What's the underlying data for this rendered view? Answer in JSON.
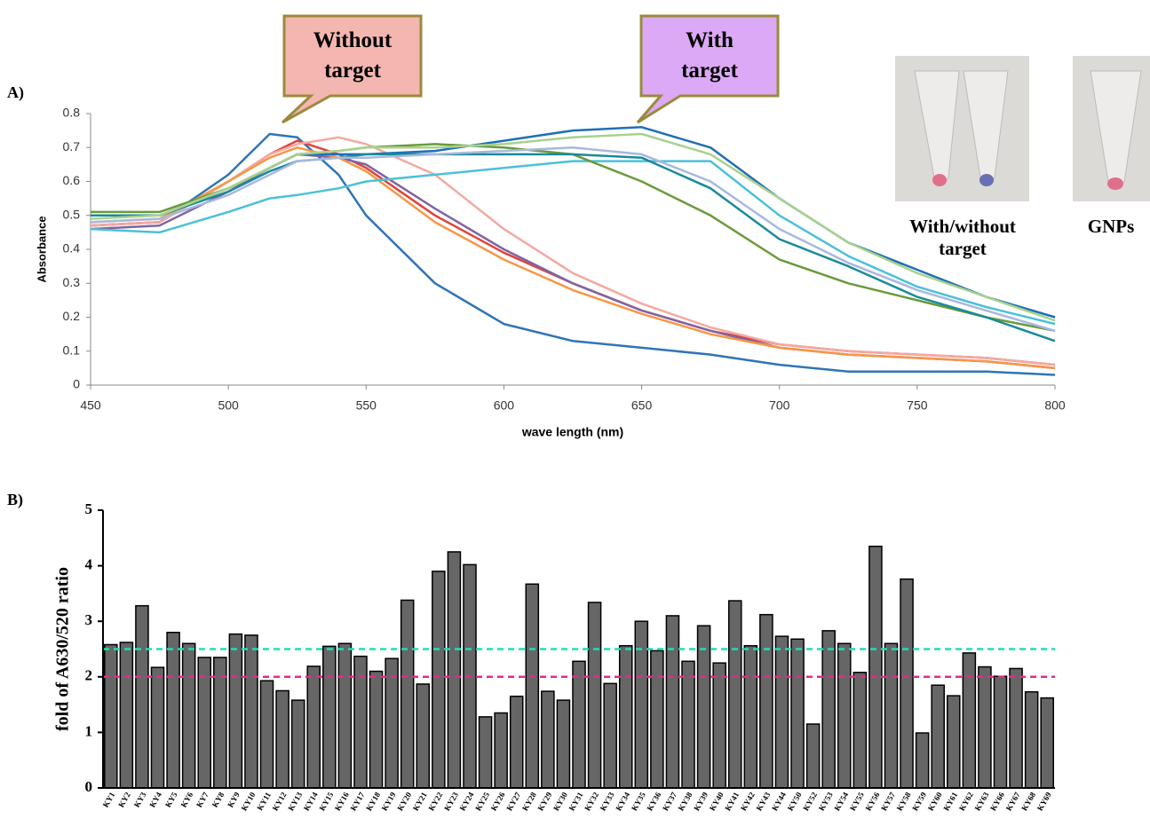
{
  "chart_data": [
    {
      "type": "line",
      "panel_label": "A)",
      "x_label": "wave length (nm)",
      "y_label": "Absorbance",
      "annotations": [
        "Without target",
        "With target"
      ],
      "image_captions": [
        "With/without target",
        "GNPs"
      ],
      "x": [
        450,
        475,
        500,
        515,
        525,
        540,
        550,
        575,
        600,
        625,
        650,
        675,
        700,
        725,
        750,
        775,
        800
      ],
      "xlim": [
        450,
        800
      ],
      "xticks": [
        450,
        500,
        550,
        600,
        650,
        700,
        750,
        800
      ],
      "ylim": [
        0,
        0.8
      ],
      "yticks": [
        0,
        0.1,
        0.2,
        0.3,
        0.4,
        0.5,
        0.6,
        0.7,
        0.8
      ],
      "series": [
        {
          "color": "#2e75b6",
          "values": [
            0.47,
            0.48,
            0.62,
            0.74,
            0.73,
            0.62,
            0.5,
            0.3,
            0.18,
            0.13,
            0.11,
            0.09,
            0.06,
            0.04,
            0.04,
            0.04,
            0.03
          ]
        },
        {
          "color": "#e0443a",
          "values": [
            0.47,
            0.48,
            0.6,
            0.68,
            0.72,
            0.68,
            0.64,
            0.5,
            0.39,
            0.3,
            0.22,
            0.16,
            0.12,
            0.1,
            0.09,
            0.08,
            0.06
          ]
        },
        {
          "color": "#f4a9a0",
          "values": [
            0.47,
            0.48,
            0.6,
            0.68,
            0.71,
            0.73,
            0.71,
            0.62,
            0.46,
            0.33,
            0.24,
            0.17,
            0.12,
            0.1,
            0.09,
            0.08,
            0.06
          ]
        },
        {
          "color": "#8064a2",
          "values": [
            0.46,
            0.47,
            0.57,
            0.64,
            0.68,
            0.67,
            0.65,
            0.52,
            0.4,
            0.3,
            0.22,
            0.16,
            0.11,
            0.09,
            0.08,
            0.07,
            0.05
          ]
        },
        {
          "color": "#f79646",
          "values": [
            0.48,
            0.49,
            0.6,
            0.67,
            0.7,
            0.67,
            0.63,
            0.48,
            0.37,
            0.28,
            0.21,
            0.15,
            0.11,
            0.09,
            0.08,
            0.07,
            0.05
          ]
        },
        {
          "color": "#1f6fb5",
          "values": [
            0.5,
            0.5,
            0.58,
            0.64,
            0.68,
            0.68,
            0.68,
            0.69,
            0.72,
            0.75,
            0.76,
            0.7,
            0.55,
            0.42,
            0.34,
            0.26,
            0.2
          ]
        },
        {
          "color": "#4bc0d9",
          "values": [
            0.46,
            0.45,
            0.51,
            0.55,
            0.56,
            0.58,
            0.6,
            0.62,
            0.64,
            0.66,
            0.66,
            0.66,
            0.5,
            0.38,
            0.29,
            0.23,
            0.18
          ]
        },
        {
          "color": "#6a9a3a",
          "values": [
            0.51,
            0.51,
            0.58,
            0.64,
            0.68,
            0.69,
            0.7,
            0.71,
            0.7,
            0.68,
            0.6,
            0.5,
            0.37,
            0.3,
            0.25,
            0.2,
            0.16
          ]
        },
        {
          "color": "#1a8a99",
          "values": [
            0.5,
            0.5,
            0.57,
            0.63,
            0.66,
            0.67,
            0.68,
            0.68,
            0.68,
            0.68,
            0.67,
            0.58,
            0.43,
            0.35,
            0.26,
            0.2,
            0.13
          ]
        },
        {
          "color": "#a9d18e",
          "values": [
            0.49,
            0.5,
            0.58,
            0.64,
            0.68,
            0.69,
            0.7,
            0.7,
            0.71,
            0.73,
            0.74,
            0.68,
            0.55,
            0.42,
            0.33,
            0.26,
            0.19
          ]
        },
        {
          "color": "#a8b8e0",
          "values": [
            0.48,
            0.49,
            0.56,
            0.62,
            0.66,
            0.67,
            0.67,
            0.68,
            0.69,
            0.7,
            0.68,
            0.6,
            0.46,
            0.36,
            0.28,
            0.22,
            0.16
          ]
        }
      ]
    },
    {
      "type": "bar",
      "panel_label": "B)",
      "y_label": "fold of A630/520 ratio",
      "color": "#666666",
      "categories": [
        "KY1",
        "KY2",
        "KY3",
        "KY4",
        "KY5",
        "KY6",
        "KY7",
        "KY8",
        "KY9",
        "KY10",
        "KY11",
        "KY12",
        "KY13",
        "KY14",
        "KY15",
        "KY16",
        "KY17",
        "KY18",
        "KY19",
        "KY20",
        "KY21",
        "KY22",
        "KY23",
        "KY24",
        "KY25",
        "KY26",
        "KY27",
        "KY28",
        "KY29",
        "KY30",
        "KY31",
        "KY32",
        "KY33",
        "KY34",
        "KY35",
        "KY36",
        "KY37",
        "KY38",
        "KY39",
        "KY40",
        "KY41",
        "KY42",
        "KY43",
        "KY44",
        "KY50",
        "KY52",
        "KY53",
        "KY54",
        "KY55",
        "KY56",
        "KY57",
        "KY58",
        "KY59",
        "KY60",
        "KY61",
        "KY62",
        "KY63",
        "KY66",
        "KY67",
        "KY68",
        "KY69"
      ],
      "values": [
        2.58,
        2.62,
        3.28,
        2.17,
        2.8,
        2.6,
        2.35,
        2.35,
        2.77,
        2.75,
        1.93,
        1.75,
        1.58,
        2.19,
        2.55,
        2.6,
        2.37,
        2.1,
        2.33,
        3.38,
        1.87,
        3.9,
        4.25,
        4.02,
        1.28,
        1.35,
        1.65,
        3.67,
        1.74,
        1.58,
        2.28,
        3.34,
        1.88,
        2.56,
        3.0,
        2.47,
        3.1,
        2.28,
        2.92,
        2.25,
        3.37,
        2.56,
        3.12,
        2.73,
        2.68,
        1.15,
        2.83,
        2.6,
        2.08,
        4.35,
        2.6,
        3.76,
        0.99,
        1.85,
        1.66,
        2.43,
        2.18,
        2.01,
        2.15,
        1.73,
        1.62
      ],
      "ylim": [
        0,
        5
      ],
      "yticks": [
        0,
        1,
        2,
        3,
        4,
        5
      ],
      "reference_lines": [
        {
          "value": 2.5,
          "color": "#1de0b0"
        },
        {
          "value": 2,
          "color": "#e8288a"
        }
      ]
    }
  ]
}
